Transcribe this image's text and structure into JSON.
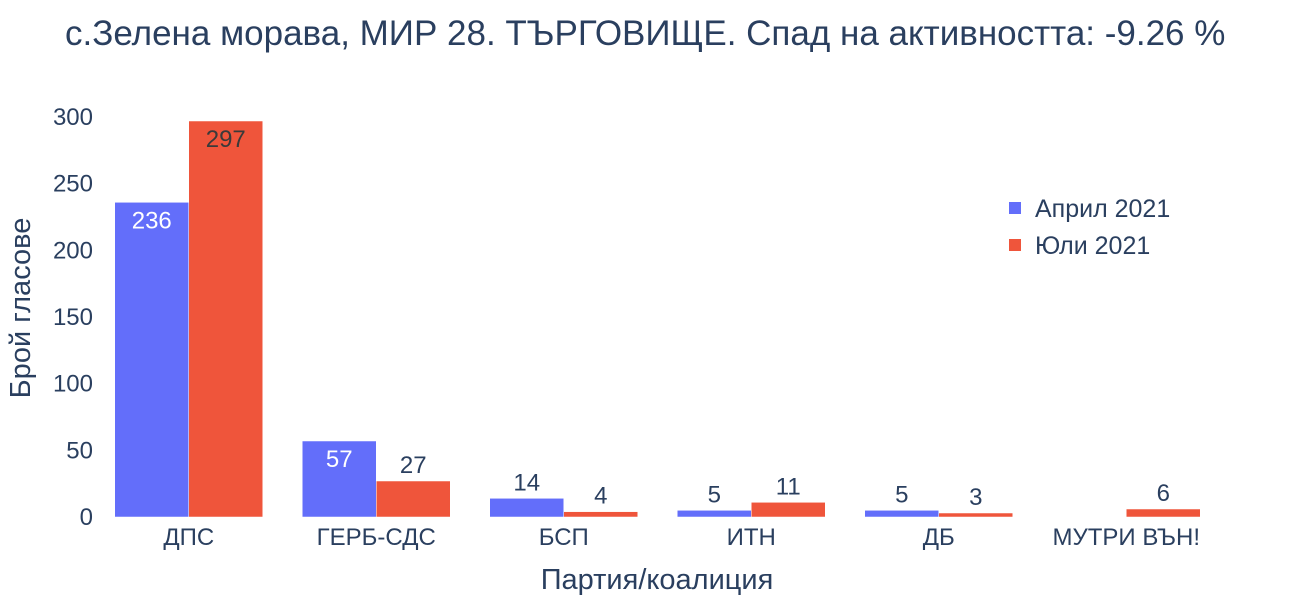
{
  "chart_data": {
    "type": "bar",
    "title": "с.Зелена морава, МИР 28. ТЪРГОВИЩЕ. Спад на активността: -9.26 %",
    "xlabel": "Партия/коалиция",
    "ylabel": "Брой гласове",
    "categories": [
      "ДПС",
      "ГЕРБ-СДС",
      "БСП",
      "ИТН",
      "ДБ",
      "МУТРИ ВЪН!"
    ],
    "series": [
      {
        "name": "Април 2021",
        "values": [
          236,
          57,
          14,
          5,
          5,
          0
        ],
        "labels": [
          "236",
          "57",
          "14",
          "5",
          "5",
          ""
        ],
        "color": "#636efa"
      },
      {
        "name": "Юли 2021",
        "values": [
          297,
          27,
          4,
          11,
          3,
          6
        ],
        "labels": [
          "297",
          "27",
          "4",
          "11",
          "3",
          "6"
        ],
        "color": "#EF553B"
      }
    ],
    "ylim": [
      0,
      300
    ],
    "yticks": [
      0,
      50,
      100,
      150,
      200,
      250,
      300
    ],
    "grid": false,
    "legend": "top-right"
  }
}
